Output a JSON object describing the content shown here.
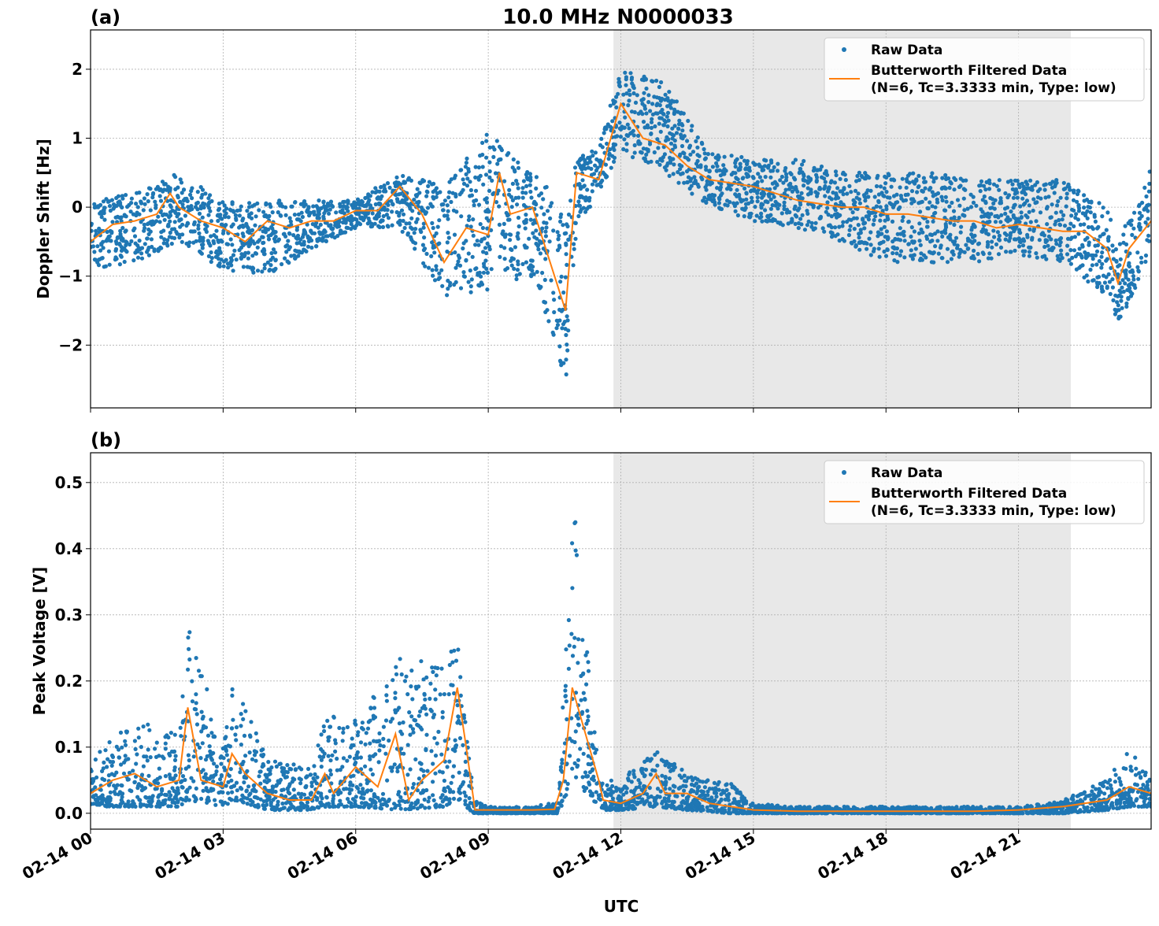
{
  "title": "10.0 MHz N0000033",
  "xlabel": "UTC",
  "x_ticks": [
    "02-14 00",
    "02-14 03",
    "02-14 06",
    "02-14 09",
    "02-14 12",
    "02-14 15",
    "02-14 18",
    "02-14 21"
  ],
  "xlim": [
    "02-14 00:00",
    "02-15 00:00"
  ],
  "shaded_region": [
    "02-14 11:50",
    "02-14 22:11"
  ],
  "colors": {
    "raw": "#1f77b4",
    "filtered": "#ff7f0e",
    "shade": "#e8e8e8",
    "grid": "#b0b0b0"
  },
  "legend": {
    "placement": "top-right",
    "raw_label": "Raw Data",
    "filtered_label_1": "Butterworth Filtered Data",
    "filtered_label_2": "(N=6, Tc=3.3333 min, Type: low)"
  },
  "chart_data": [
    {
      "type": "scatter+line",
      "panel_label": "(a)",
      "ylabel": "Doppler Shift [Hz]",
      "ylim": [
        -2.91,
        2.57
      ],
      "y_ticks": [
        -2,
        -1,
        0,
        1,
        2
      ],
      "y_tick_labels": [
        "−2",
        "−1",
        "0",
        "1",
        "2"
      ],
      "grid": true,
      "filtered": [
        [
          "00:00",
          -0.5
        ],
        [
          "00:30",
          -0.25
        ],
        [
          "01:00",
          -0.2
        ],
        [
          "01:30",
          -0.1
        ],
        [
          "01:48",
          0.2
        ],
        [
          "02:00",
          0.0
        ],
        [
          "02:30",
          -0.2
        ],
        [
          "03:00",
          -0.3
        ],
        [
          "03:30",
          -0.5
        ],
        [
          "04:00",
          -0.2
        ],
        [
          "04:30",
          -0.3
        ],
        [
          "05:00",
          -0.2
        ],
        [
          "05:30",
          -0.2
        ],
        [
          "06:00",
          -0.05
        ],
        [
          "06:30",
          -0.05
        ],
        [
          "07:00",
          0.3
        ],
        [
          "07:30",
          -0.1
        ],
        [
          "08:00",
          -0.8
        ],
        [
          "08:30",
          -0.3
        ],
        [
          "09:00",
          -0.4
        ],
        [
          "09:15",
          0.5
        ],
        [
          "09:30",
          -0.1
        ],
        [
          "10:00",
          0.0
        ],
        [
          "10:30",
          -1.0
        ],
        [
          "10:45",
          -1.5
        ],
        [
          "11:00",
          0.5
        ],
        [
          "11:30",
          0.4
        ],
        [
          "12:00",
          1.5
        ],
        [
          "12:30",
          1.0
        ],
        [
          "13:00",
          0.9
        ],
        [
          "13:30",
          0.6
        ],
        [
          "14:00",
          0.4
        ],
        [
          "14:30",
          0.35
        ],
        [
          "15:00",
          0.3
        ],
        [
          "15:30",
          0.2
        ],
        [
          "16:00",
          0.1
        ],
        [
          "16:30",
          0.05
        ],
        [
          "17:00",
          0.0
        ],
        [
          "17:30",
          0.0
        ],
        [
          "18:00",
          -0.1
        ],
        [
          "18:30",
          -0.1
        ],
        [
          "19:00",
          -0.15
        ],
        [
          "19:30",
          -0.2
        ],
        [
          "20:00",
          -0.2
        ],
        [
          "20:30",
          -0.3
        ],
        [
          "21:00",
          -0.25
        ],
        [
          "21:30",
          -0.3
        ],
        [
          "22:00",
          -0.35
        ],
        [
          "22:30",
          -0.35
        ],
        [
          "23:00",
          -0.6
        ],
        [
          "23:15",
          -1.1
        ],
        [
          "23:30",
          -0.6
        ],
        [
          "24:00",
          -0.2
        ]
      ],
      "raw_envelope": [
        [
          "00:00",
          -0.9,
          0.1
        ],
        [
          "01:00",
          -0.8,
          0.2
        ],
        [
          "02:00",
          -0.5,
          0.5
        ],
        [
          "03:00",
          -0.9,
          0.1
        ],
        [
          "04:00",
          -1.0,
          0.1
        ],
        [
          "05:00",
          -0.6,
          0.1
        ],
        [
          "06:00",
          -0.3,
          0.1
        ],
        [
          "07:00",
          -0.3,
          0.5
        ],
        [
          "08:00",
          -1.3,
          0.3
        ],
        [
          "09:00",
          -1.2,
          1.1
        ],
        [
          "10:00",
          -1.0,
          0.5
        ],
        [
          "10:30",
          -1.9,
          0.2
        ],
        [
          "10:45",
          -2.6,
          -0.2
        ],
        [
          "11:00",
          -0.3,
          0.7
        ],
        [
          "11:30",
          0.2,
          0.9
        ],
        [
          "12:00",
          0.8,
          2.0
        ],
        [
          "13:00",
          0.5,
          1.8
        ],
        [
          "14:00",
          0.0,
          0.8
        ],
        [
          "15:00",
          -0.2,
          0.7
        ],
        [
          "16:00",
          -0.3,
          0.7
        ],
        [
          "17:00",
          -0.5,
          0.5
        ],
        [
          "18:00",
          -0.8,
          0.5
        ],
        [
          "19:00",
          -0.8,
          0.5
        ],
        [
          "20:00",
          -0.8,
          0.4
        ],
        [
          "21:00",
          -0.7,
          0.4
        ],
        [
          "22:00",
          -0.8,
          0.4
        ],
        [
          "23:00",
          -1.3,
          0.0
        ],
        [
          "23:15",
          -1.8,
          -0.5
        ],
        [
          "24:00",
          -0.6,
          0.6
        ]
      ]
    },
    {
      "type": "scatter+line",
      "panel_label": "(b)",
      "ylabel": "Peak Voltage [V]",
      "ylim": [
        -0.024,
        0.545
      ],
      "y_ticks": [
        0.0,
        0.1,
        0.2,
        0.3,
        0.4,
        0.5
      ],
      "y_tick_labels": [
        "0.0",
        "0.1",
        "0.2",
        "0.3",
        "0.4",
        "0.5"
      ],
      "grid": true,
      "filtered": [
        [
          "00:00",
          0.03
        ],
        [
          "00:30",
          0.05
        ],
        [
          "01:00",
          0.06
        ],
        [
          "01:30",
          0.04
        ],
        [
          "02:00",
          0.05
        ],
        [
          "02:12",
          0.16
        ],
        [
          "02:30",
          0.05
        ],
        [
          "03:00",
          0.04
        ],
        [
          "03:12",
          0.09
        ],
        [
          "03:30",
          0.06
        ],
        [
          "04:00",
          0.03
        ],
        [
          "04:30",
          0.02
        ],
        [
          "05:00",
          0.02
        ],
        [
          "05:18",
          0.06
        ],
        [
          "05:30",
          0.03
        ],
        [
          "06:00",
          0.07
        ],
        [
          "06:30",
          0.04
        ],
        [
          "06:54",
          0.12
        ],
        [
          "07:12",
          0.02
        ],
        [
          "07:30",
          0.05
        ],
        [
          "08:00",
          0.08
        ],
        [
          "08:18",
          0.19
        ],
        [
          "08:30",
          0.1
        ],
        [
          "08:42",
          0.005
        ],
        [
          "09:00",
          0.005
        ],
        [
          "10:00",
          0.005
        ],
        [
          "10:30",
          0.006
        ],
        [
          "10:42",
          0.05
        ],
        [
          "10:54",
          0.19
        ],
        [
          "11:12",
          0.12
        ],
        [
          "11:30",
          0.05
        ],
        [
          "11:36",
          0.02
        ],
        [
          "12:00",
          0.015
        ],
        [
          "12:30",
          0.03
        ],
        [
          "12:48",
          0.06
        ],
        [
          "13:00",
          0.03
        ],
        [
          "13:30",
          0.03
        ],
        [
          "14:00",
          0.015
        ],
        [
          "14:30",
          0.01
        ],
        [
          "15:00",
          0.005
        ],
        [
          "16:00",
          0.003
        ],
        [
          "18:00",
          0.003
        ],
        [
          "20:00",
          0.003
        ],
        [
          "21:00",
          0.005
        ],
        [
          "22:00",
          0.01
        ],
        [
          "23:00",
          0.02
        ],
        [
          "23:30",
          0.04
        ],
        [
          "24:00",
          0.03
        ]
      ],
      "raw_envelope": [
        [
          "00:00",
          0.01,
          0.09
        ],
        [
          "01:00",
          0.01,
          0.14
        ],
        [
          "02:00",
          0.01,
          0.12
        ],
        [
          "02:12",
          0.02,
          0.3
        ],
        [
          "03:00",
          0.01,
          0.1
        ],
        [
          "03:15",
          0.02,
          0.21
        ],
        [
          "04:00",
          0.005,
          0.08
        ],
        [
          "05:00",
          0.005,
          0.07
        ],
        [
          "05:20",
          0.01,
          0.15
        ],
        [
          "06:00",
          0.01,
          0.14
        ],
        [
          "07:00",
          0.005,
          0.24
        ],
        [
          "08:00",
          0.01,
          0.22
        ],
        [
          "08:20",
          0.02,
          0.29
        ],
        [
          "08:40",
          0.0,
          0.02
        ],
        [
          "09:00",
          0.0,
          0.01
        ],
        [
          "10:00",
          0.0,
          0.01
        ],
        [
          "10:36",
          0.0,
          0.02
        ],
        [
          "10:54",
          0.05,
          0.52
        ],
        [
          "11:12",
          0.03,
          0.27
        ],
        [
          "11:36",
          0.005,
          0.05
        ],
        [
          "12:00",
          0.005,
          0.05
        ],
        [
          "12:48",
          0.01,
          0.1
        ],
        [
          "13:30",
          0.005,
          0.06
        ],
        [
          "14:30",
          0.0,
          0.045
        ],
        [
          "15:00",
          0.0,
          0.015
        ],
        [
          "16:00",
          0.0,
          0.01
        ],
        [
          "21:00",
          0.0,
          0.01
        ],
        [
          "22:00",
          0.0,
          0.02
        ],
        [
          "23:00",
          0.005,
          0.05
        ],
        [
          "23:30",
          0.01,
          0.1
        ],
        [
          "24:00",
          0.01,
          0.05
        ]
      ]
    }
  ]
}
